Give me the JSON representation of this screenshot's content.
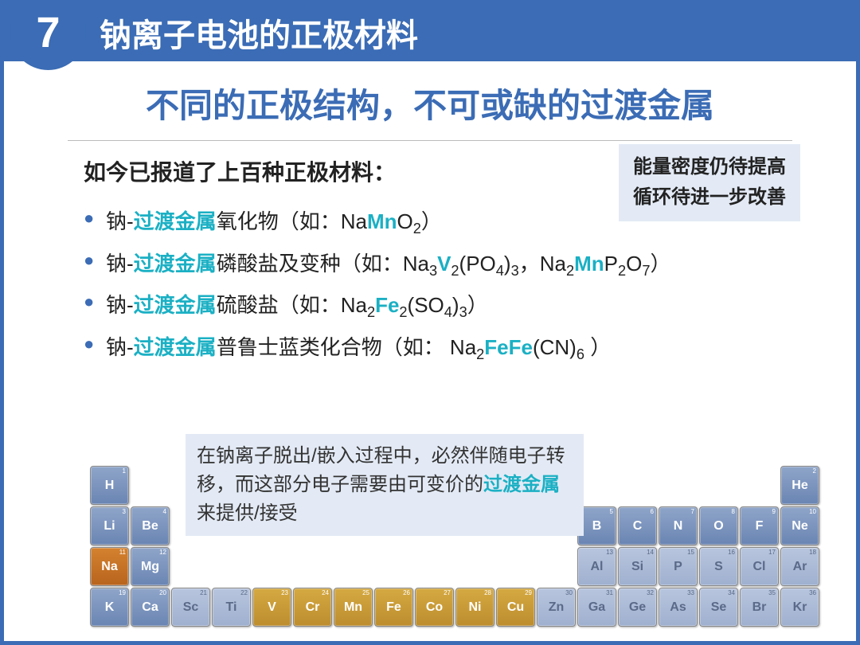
{
  "header": {
    "number": "7",
    "title": "钠离子电池的正极材料"
  },
  "subtitle": "不同的正极结构，不可或缺的过渡金属",
  "intro": "如今已报道了上百种正极材料：",
  "callout": {
    "line1": "能量密度仍待提高",
    "line2": "循环待进一步改善"
  },
  "bullets": [
    {
      "pre": "钠-",
      "hl": "过渡金属",
      "mid": "氧化物（如：Na",
      "f1": "Mn",
      "post": "O<sub>2</sub>）"
    },
    {
      "pre": "钠-",
      "hl": "过渡金属",
      "mid": "磷酸盐及变种（如：Na<sub>3</sub>",
      "f1": "V",
      "post": "<sub>2</sub>(PO<sub>4</sub>)<sub>3</sub>，Na<sub>2</sub><span class='cyan'>Mn</span>P<sub>2</sub>O<sub>7</sub>）"
    },
    {
      "pre": "钠-",
      "hl": "过渡金属",
      "mid": "硫酸盐（如：Na<sub>2</sub>",
      "f1": "Fe",
      "post": "<sub>2</sub>(SO<sub>4</sub>)<sub>3</sub>）"
    },
    {
      "pre": "钠-",
      "hl": "过渡金属",
      "mid": "普鲁士蓝类化合物（如： Na<sub>2</sub>",
      "f1": "FeFe",
      "post": "(CN)<sub>6</sub> ）"
    }
  ],
  "note": {
    "t1": "在钠离子脱出/嵌入过程中，必然伴随电子转移，而这部分电子需要由可变价的",
    "hl": "过渡金属",
    "t2": "来提供/接受"
  },
  "elements": [
    {
      "sym": "H",
      "n": 1,
      "r": 1,
      "c": 1,
      "cls": "blue-el"
    },
    {
      "sym": "He",
      "n": 2,
      "r": 1,
      "c": 18,
      "cls": "blue-el"
    },
    {
      "sym": "Li",
      "n": 3,
      "r": 2,
      "c": 1,
      "cls": "blue-el"
    },
    {
      "sym": "Be",
      "n": 4,
      "r": 2,
      "c": 2,
      "cls": "blue-el"
    },
    {
      "sym": "B",
      "n": 5,
      "r": 2,
      "c": 13,
      "cls": "blue-el"
    },
    {
      "sym": "C",
      "n": 6,
      "r": 2,
      "c": 14,
      "cls": "blue-el"
    },
    {
      "sym": "N",
      "n": 7,
      "r": 2,
      "c": 15,
      "cls": "blue-el"
    },
    {
      "sym": "O",
      "n": 8,
      "r": 2,
      "c": 16,
      "cls": "blue-el"
    },
    {
      "sym": "F",
      "n": 9,
      "r": 2,
      "c": 17,
      "cls": "blue-el"
    },
    {
      "sym": "Ne",
      "n": 10,
      "r": 2,
      "c": 18,
      "cls": "blue-el"
    },
    {
      "sym": "Na",
      "n": 11,
      "r": 3,
      "c": 1,
      "cls": "orange-el"
    },
    {
      "sym": "Mg",
      "n": 12,
      "r": 3,
      "c": 2,
      "cls": "blue-el"
    },
    {
      "sym": "Al",
      "n": 13,
      "r": 3,
      "c": 13,
      "cls": "light-el"
    },
    {
      "sym": "Si",
      "n": 14,
      "r": 3,
      "c": 14,
      "cls": "light-el"
    },
    {
      "sym": "P",
      "n": 15,
      "r": 3,
      "c": 15,
      "cls": "light-el"
    },
    {
      "sym": "S",
      "n": 16,
      "r": 3,
      "c": 16,
      "cls": "light-el"
    },
    {
      "sym": "Cl",
      "n": 17,
      "r": 3,
      "c": 17,
      "cls": "light-el"
    },
    {
      "sym": "Ar",
      "n": 18,
      "r": 3,
      "c": 18,
      "cls": "light-el"
    },
    {
      "sym": "K",
      "n": 19,
      "r": 4,
      "c": 1,
      "cls": "blue-el"
    },
    {
      "sym": "Ca",
      "n": 20,
      "r": 4,
      "c": 2,
      "cls": "blue-el"
    },
    {
      "sym": "Sc",
      "n": 21,
      "r": 4,
      "c": 3,
      "cls": "light-el"
    },
    {
      "sym": "Ti",
      "n": 22,
      "r": 4,
      "c": 4,
      "cls": "light-el"
    },
    {
      "sym": "V",
      "n": 23,
      "r": 4,
      "c": 5,
      "cls": "gold-el"
    },
    {
      "sym": "Cr",
      "n": 24,
      "r": 4,
      "c": 6,
      "cls": "gold-el"
    },
    {
      "sym": "Mn",
      "n": 25,
      "r": 4,
      "c": 7,
      "cls": "gold-el"
    },
    {
      "sym": "Fe",
      "n": 26,
      "r": 4,
      "c": 8,
      "cls": "gold-el"
    },
    {
      "sym": "Co",
      "n": 27,
      "r": 4,
      "c": 9,
      "cls": "gold-el"
    },
    {
      "sym": "Ni",
      "n": 28,
      "r": 4,
      "c": 10,
      "cls": "gold-el"
    },
    {
      "sym": "Cu",
      "n": 29,
      "r": 4,
      "c": 11,
      "cls": "gold-el"
    },
    {
      "sym": "Zn",
      "n": 30,
      "r": 4,
      "c": 12,
      "cls": "light-el"
    },
    {
      "sym": "Ga",
      "n": 31,
      "r": 4,
      "c": 13,
      "cls": "light-el"
    },
    {
      "sym": "Ge",
      "n": 32,
      "r": 4,
      "c": 14,
      "cls": "light-el"
    },
    {
      "sym": "As",
      "n": 33,
      "r": 4,
      "c": 15,
      "cls": "light-el"
    },
    {
      "sym": "Se",
      "n": 34,
      "r": 4,
      "c": 16,
      "cls": "light-el"
    },
    {
      "sym": "Br",
      "n": 35,
      "r": 4,
      "c": 17,
      "cls": "light-el"
    },
    {
      "sym": "Kr",
      "n": 36,
      "r": 4,
      "c": 18,
      "cls": "light-el"
    }
  ]
}
